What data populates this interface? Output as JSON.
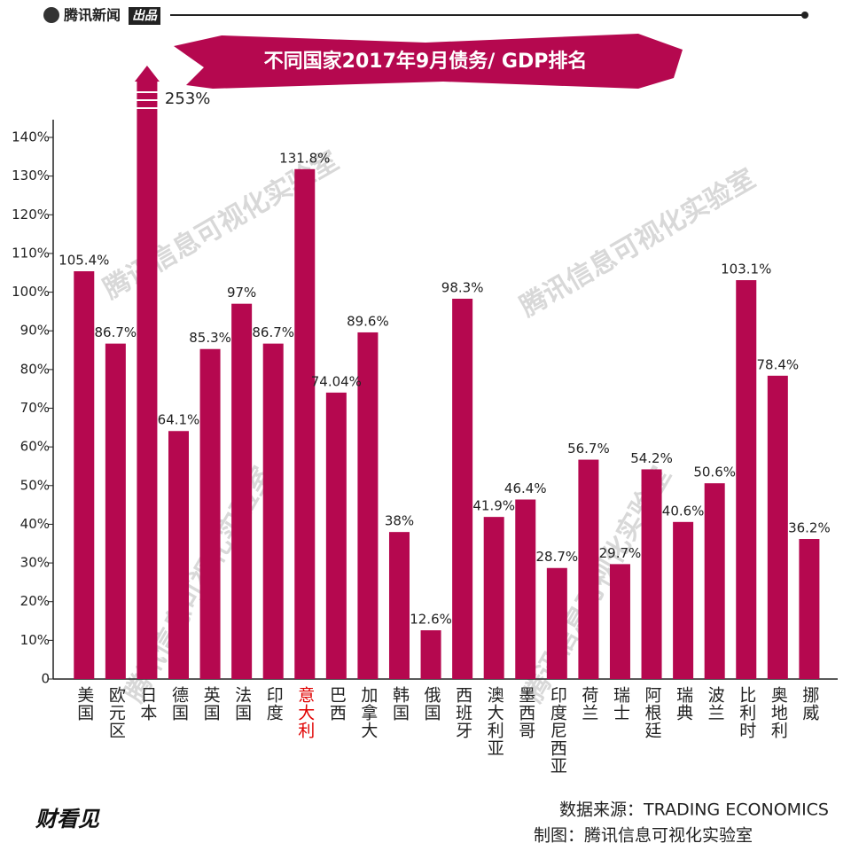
{
  "brand": "腾讯新闻",
  "brand_tag": "出品",
  "chart_data": {
    "type": "bar",
    "title": "不同国家2017年9月债务/ GDP排名",
    "categories": [
      "美国",
      "欧元区",
      "日本",
      "德国",
      "英国",
      "法国",
      "印度",
      "意大利",
      "巴西",
      "加拿大",
      "韩国",
      "俄国",
      "西班牙",
      "澳大利亚",
      "墨西哥",
      "印度尼西亚",
      "荷兰",
      "瑞士",
      "阿根廷",
      "瑞典",
      "波兰",
      "比利时",
      "奥地利",
      "挪威"
    ],
    "values": [
      105.4,
      86.7,
      253,
      64.1,
      85.3,
      97,
      86.7,
      131.8,
      74.04,
      89.6,
      38,
      12.6,
      98.3,
      41.9,
      46.4,
      28.7,
      56.7,
      29.7,
      54.2,
      40.6,
      50.6,
      103.1,
      78.4,
      36.2
    ],
    "value_labels": [
      "105.4%",
      "86.7%",
      "253%",
      "64.1%",
      "85.3%",
      "97%",
      "86.7%",
      "131.8%",
      "74.04%",
      "89.6%",
      "38%",
      "12.6%",
      "98.3%",
      "41.9%",
      "46.4%",
      "28.7%",
      "56.7%",
      "29.7%",
      "54.2%",
      "40.6%",
      "50.6%",
      "103.1%",
      "78.4%",
      "36.2%"
    ],
    "color": "#b5084f",
    "highlight_index": 7,
    "highlight_color": "#e00000",
    "ylim": [
      0,
      140
    ],
    "yticks": [
      {
        "value": 0,
        "label": "0"
      },
      {
        "value": 10,
        "label": "10%"
      },
      {
        "value": 20,
        "label": "20%"
      },
      {
        "value": 30,
        "label": "30%"
      },
      {
        "value": 40,
        "label": "40%"
      },
      {
        "value": 50,
        "label": "50%"
      },
      {
        "value": 60,
        "label": "60%"
      },
      {
        "value": 70,
        "label": "70%"
      },
      {
        "value": 80,
        "label": "80%"
      },
      {
        "value": 90,
        "label": "90%"
      },
      {
        "value": 100,
        "label": "100%"
      },
      {
        "value": 110,
        "label": "110%"
      },
      {
        "value": 120,
        "label": "120%"
      },
      {
        "value": 130,
        "label": "130%"
      },
      {
        "value": 140,
        "label": "140%"
      }
    ],
    "grid": false
  },
  "watermark": "腾讯信息可视化实验室",
  "source": "数据来源：TRADING ECONOMICS",
  "credit": "制图：腾讯信息可视化实验室",
  "logo": "财看见"
}
